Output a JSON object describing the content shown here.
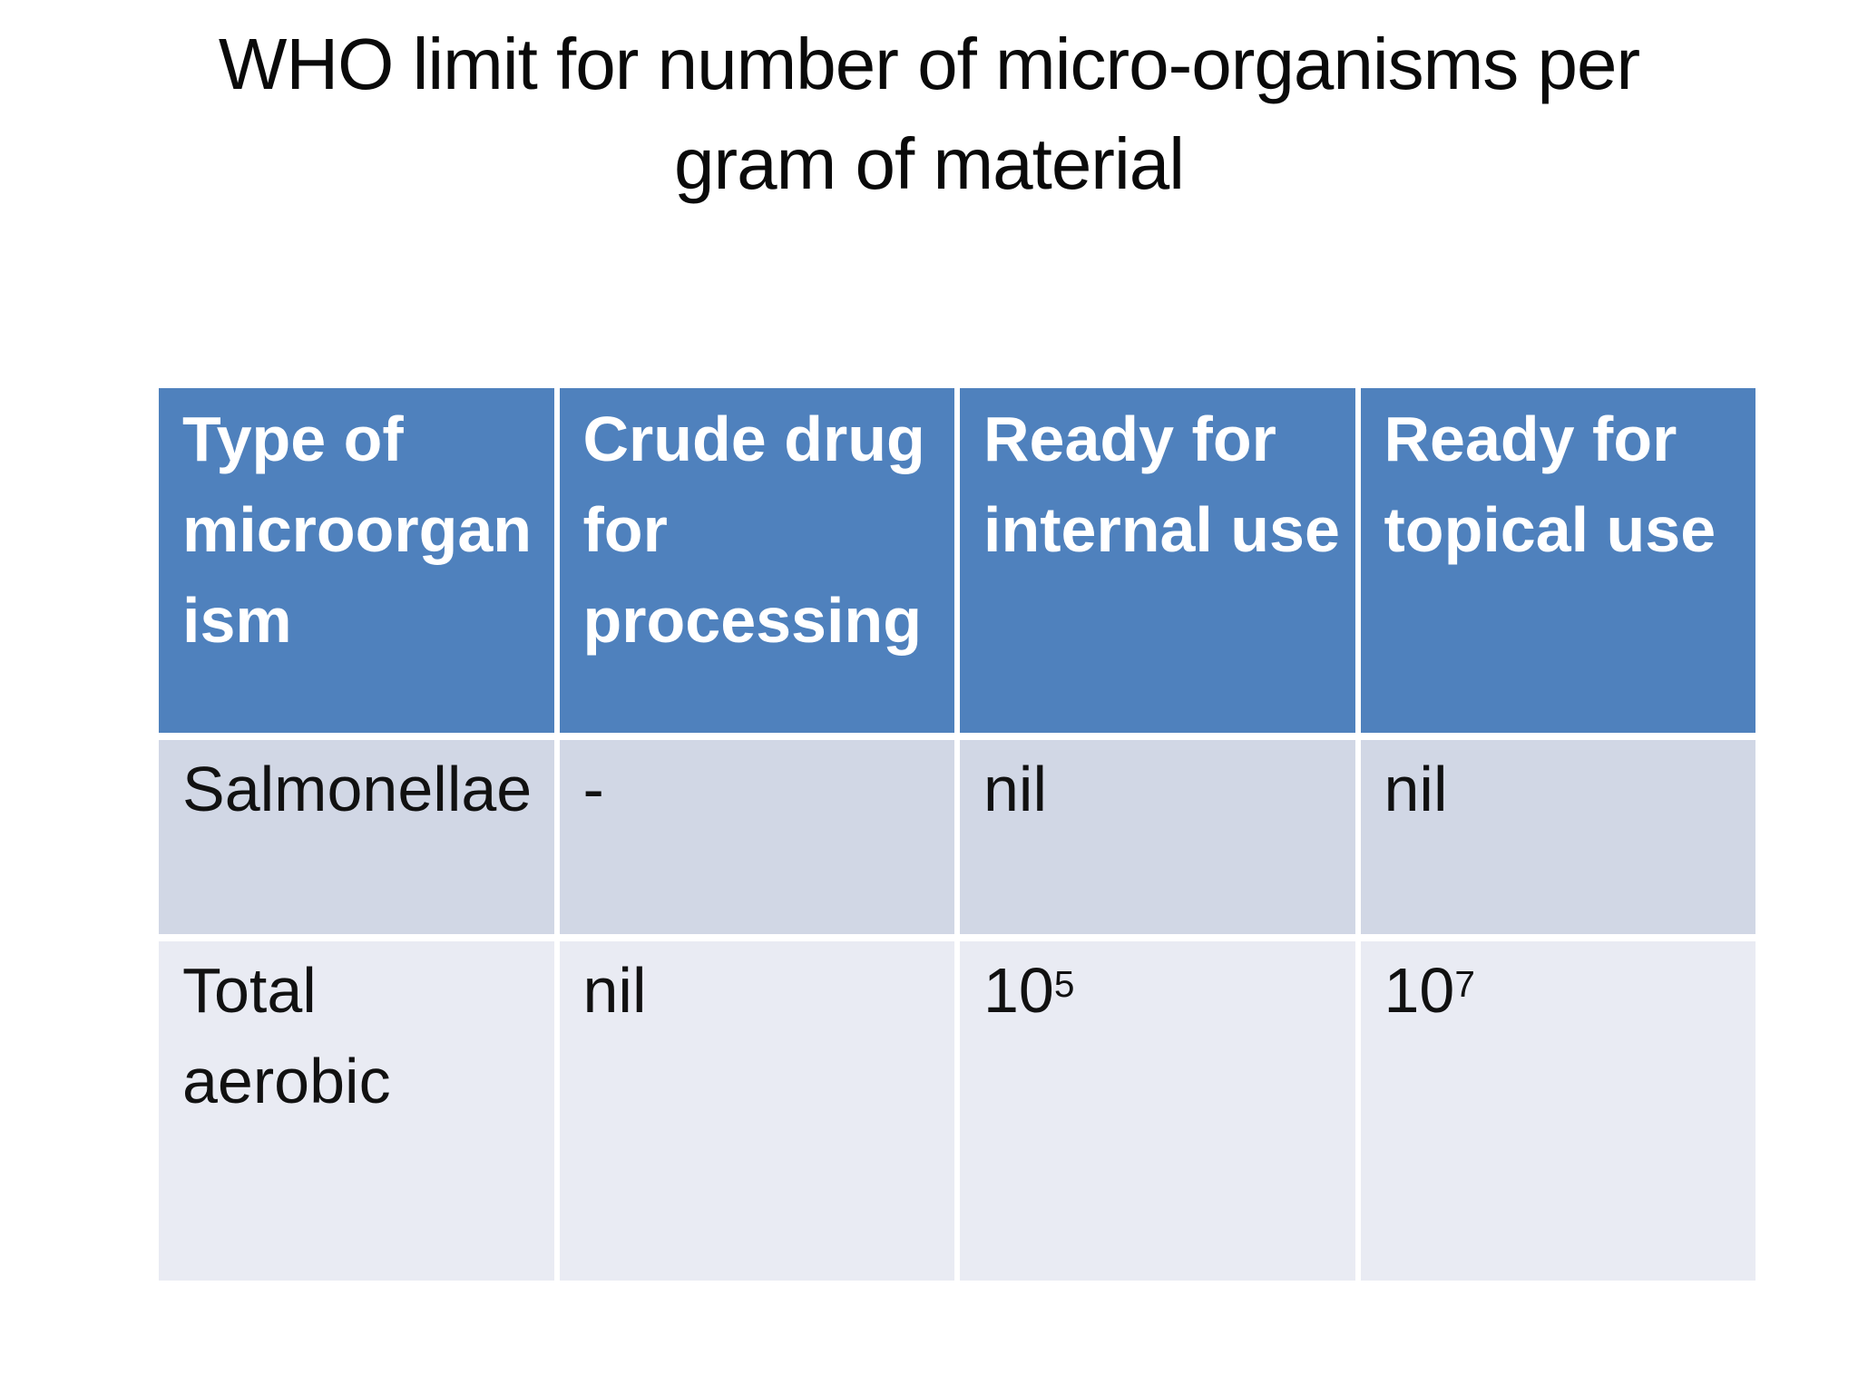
{
  "slide": {
    "title_line1": "WHO limit for number of micro-organisms per",
    "title_line2": "gram of material"
  },
  "table": {
    "columns": [
      "Type of\nmicroorgan\nism",
      "Crude drug\nfor\nprocessing",
      "Ready for\ninternal use",
      "Ready for\ntopical use"
    ],
    "rows": [
      {
        "cells": [
          "Salmonellae",
          "-",
          "nil",
          "nil"
        ]
      },
      {
        "cells": [
          "Total\naerobic",
          "nil",
          {
            "base": "10",
            "exp": "5"
          },
          {
            "base": "10",
            "exp": "7"
          }
        ]
      }
    ],
    "colors": {
      "header_bg": "#4F81BD",
      "header_text": "#FFFFFF",
      "row_odd_bg": "#D1D7E5",
      "row_even_bg": "#E9EBF3",
      "body_text": "#111111",
      "gridline": "#FFFFFF"
    }
  }
}
